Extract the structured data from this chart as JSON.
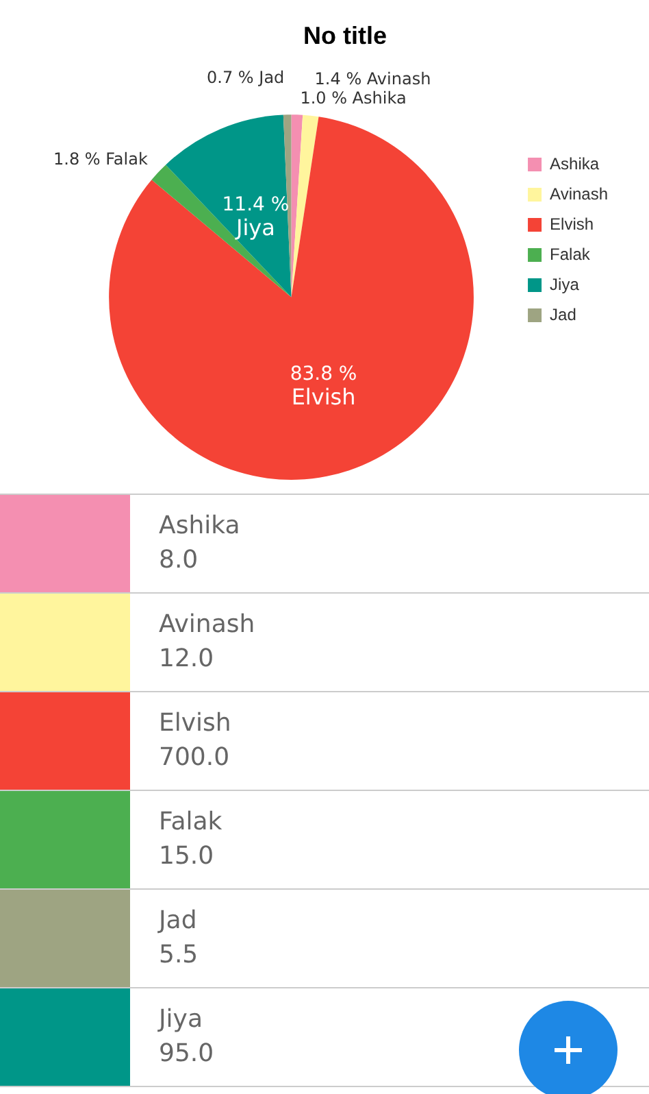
{
  "chart_data": {
    "type": "pie",
    "title": "No title",
    "categories": [
      "Ashika",
      "Avinash",
      "Elvish",
      "Falak",
      "Jiya",
      "Jad"
    ],
    "values": [
      1.0,
      1.4,
      83.8,
      1.8,
      11.4,
      0.7
    ],
    "colors": [
      "#f48fb1",
      "#fff59d",
      "#f44336",
      "#4caf50",
      "#009688",
      "#9ea482"
    ],
    "value_labels": [
      "1.0 %",
      "1.4 %",
      "83.8 %",
      "1.8 %",
      "11.4 %",
      "0.7 %"
    ],
    "annotations": [
      "8.0",
      "12.0",
      "700.0",
      "15.0",
      "95.0",
      "5.5"
    ],
    "legend": "right"
  }
}
